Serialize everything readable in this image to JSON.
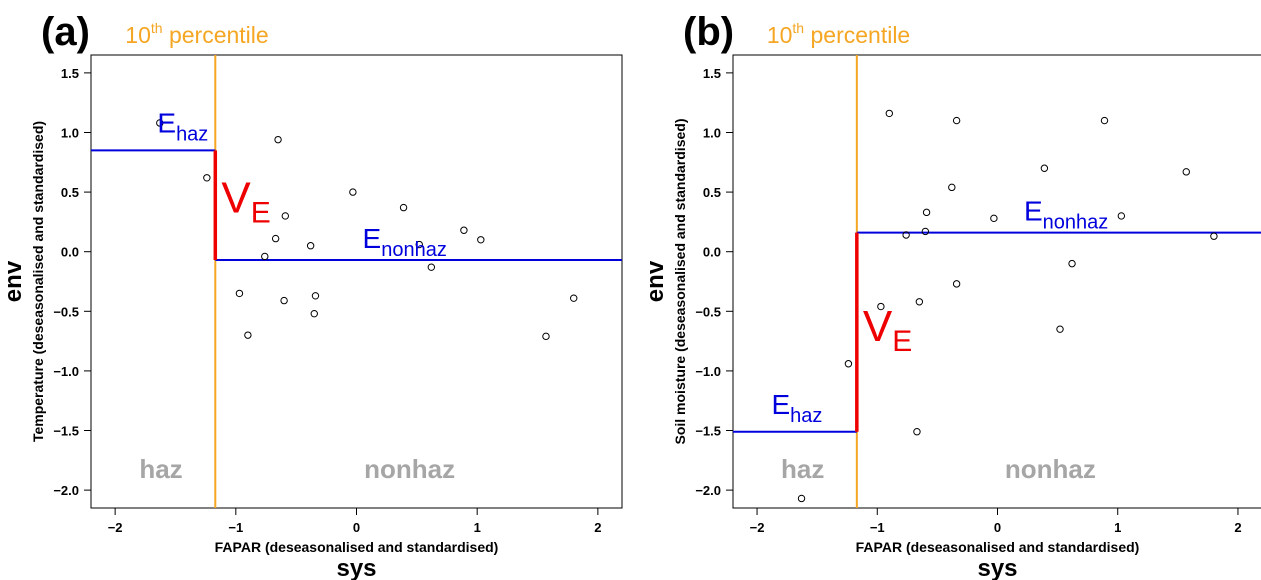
{
  "colors": {
    "points": "#000000",
    "percentile_line": "#f5a623",
    "levels": "#0000dd",
    "ve": "#ee0000",
    "region_label": "#a6a6a6",
    "axis": "#000000"
  },
  "chart_data": [
    {
      "type": "scatter",
      "panel_label": "(a)",
      "xlabel": "FAPAR (deseasonalised and standardised)",
      "xlabel_main": "sys",
      "ylabel": "Temperature (deseasonalised and standardised)",
      "ylabel_main": "env",
      "xlim": [
        -2.2,
        2.2
      ],
      "ylim": [
        -2.15,
        1.65
      ],
      "x_ticks": [
        -2,
        -1,
        0,
        1,
        2
      ],
      "x_tick_labels": [
        "−2",
        "−1",
        "0",
        "1",
        "2"
      ],
      "y_ticks": [
        -2.0,
        -1.5,
        -1.0,
        -0.5,
        0.0,
        0.5,
        1.0,
        1.5
      ],
      "y_tick_labels": [
        "−2.0",
        "−1.5",
        "−1.0",
        "−0.5",
        "0.0",
        "0.5",
        "1.0",
        "1.5"
      ],
      "points": [
        {
          "x": -1.63,
          "y": 1.08
        },
        {
          "x": -1.24,
          "y": 0.62
        },
        {
          "x": -0.65,
          "y": 0.94
        },
        {
          "x": -0.59,
          "y": 0.3
        },
        {
          "x": -0.67,
          "y": 0.11
        },
        {
          "x": -0.76,
          "y": -0.04
        },
        {
          "x": -0.38,
          "y": 0.05
        },
        {
          "x": -0.03,
          "y": 0.5
        },
        {
          "x": 0.39,
          "y": 0.37
        },
        {
          "x": 0.52,
          "y": 0.06
        },
        {
          "x": 0.89,
          "y": 0.18
        },
        {
          "x": 1.03,
          "y": 0.1
        },
        {
          "x": 0.62,
          "y": -0.13
        },
        {
          "x": -0.97,
          "y": -0.35
        },
        {
          "x": -0.6,
          "y": -0.41
        },
        {
          "x": -0.34,
          "y": -0.37
        },
        {
          "x": -0.35,
          "y": -0.52
        },
        {
          "x": -0.9,
          "y": -0.7
        },
        {
          "x": 1.57,
          "y": -0.71
        },
        {
          "x": 1.8,
          "y": -0.39
        }
      ],
      "percentile": {
        "x": -1.17,
        "label_main": "10",
        "label_sup": "th",
        "label_rest": " percentile"
      },
      "e_haz": {
        "y": 0.85,
        "label_main": "E",
        "label_sub": "haz",
        "label_x": -1.65,
        "label_y": 1.0
      },
      "e_nonhaz": {
        "y": -0.07,
        "label_main": "E",
        "label_sub": "nonhaz",
        "label_x": 0.05,
        "label_y": 0.03
      },
      "ve": {
        "label_main": "V",
        "label_sub": "E",
        "label_x": -1.12,
        "label_y": 0.33
      },
      "regions": [
        {
          "label": "haz",
          "x": -1.62,
          "y": -1.9
        },
        {
          "label": "nonhaz",
          "x": 0.44,
          "y": -1.9
        }
      ]
    },
    {
      "type": "scatter",
      "panel_label": "(b)",
      "xlabel": "FAPAR (deseasonalised and standardised)",
      "xlabel_main": "sys",
      "ylabel": "Soil moisture (deseasonalised and standardised)",
      "ylabel_main": "env",
      "xlim": [
        -2.2,
        2.2
      ],
      "ylim": [
        -2.15,
        1.65
      ],
      "x_ticks": [
        -2,
        -1,
        0,
        1,
        2
      ],
      "x_tick_labels": [
        "−2",
        "−1",
        "0",
        "1",
        "2"
      ],
      "y_ticks": [
        -2.0,
        -1.5,
        -1.0,
        -0.5,
        0.0,
        0.5,
        1.0,
        1.5
      ],
      "y_tick_labels": [
        "−2.0",
        "−1.5",
        "−1.0",
        "−0.5",
        "0.0",
        "0.5",
        "1.0",
        "1.5"
      ],
      "points": [
        {
          "x": -0.9,
          "y": 1.16
        },
        {
          "x": -0.34,
          "y": 1.1
        },
        {
          "x": 0.89,
          "y": 1.1
        },
        {
          "x": 0.39,
          "y": 0.7
        },
        {
          "x": 1.57,
          "y": 0.67
        },
        {
          "x": -0.38,
          "y": 0.54
        },
        {
          "x": -0.59,
          "y": 0.33
        },
        {
          "x": -0.03,
          "y": 0.28
        },
        {
          "x": 1.03,
          "y": 0.3
        },
        {
          "x": -0.76,
          "y": 0.14
        },
        {
          "x": -0.6,
          "y": 0.17
        },
        {
          "x": 1.8,
          "y": 0.13
        },
        {
          "x": 0.62,
          "y": -0.1
        },
        {
          "x": -0.34,
          "y": -0.27
        },
        {
          "x": -0.65,
          "y": -0.42
        },
        {
          "x": -0.97,
          "y": -0.46
        },
        {
          "x": 0.52,
          "y": -0.65
        },
        {
          "x": -1.24,
          "y": -0.94
        },
        {
          "x": -0.67,
          "y": -1.51
        },
        {
          "x": -1.63,
          "y": -2.07
        }
      ],
      "percentile": {
        "x": -1.17,
        "label_main": "10",
        "label_sup": "th",
        "label_rest": " percentile"
      },
      "e_haz": {
        "y": -1.51,
        "label_main": "E",
        "label_sub": "haz",
        "label_x": -1.88,
        "label_y": -1.36
      },
      "e_nonhaz": {
        "y": 0.16,
        "label_main": "E",
        "label_sub": "nonhaz",
        "label_x": 0.22,
        "label_y": 0.26
      },
      "ve": {
        "label_main": "V",
        "label_sub": "E",
        "label_x": -1.12,
        "label_y": -0.75
      },
      "regions": [
        {
          "label": "haz",
          "x": -1.62,
          "y": -1.9
        },
        {
          "label": "nonhaz",
          "x": 0.44,
          "y": -1.9
        }
      ]
    }
  ]
}
